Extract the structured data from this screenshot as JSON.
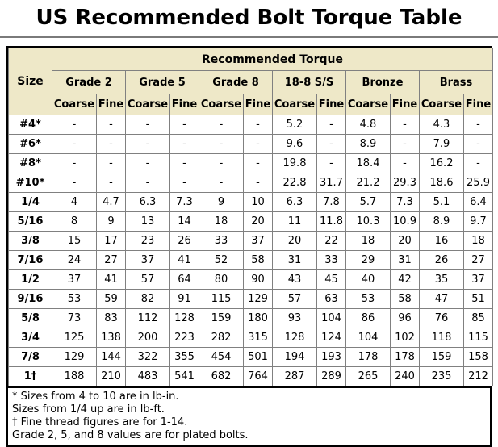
{
  "title": "US Recommended Bolt Torque Table",
  "colors": {
    "header_bg": "#EEE8C8",
    "grid_line": "#808080",
    "outer_border": "#000000",
    "page_bg": "#FFFFFF",
    "text_color": "#000000"
  },
  "chart_data": {
    "type": "table",
    "title": "US Recommended Bolt Torque Table",
    "torque_header": "Recommended Torque",
    "size_header": "Size",
    "groups": [
      "Grade 2",
      "Grade 5",
      "Grade 8",
      "18-8 S/S",
      "Bronze",
      "Brass"
    ],
    "thread_types": [
      "Coarse",
      "Fine"
    ],
    "rows": [
      {
        "size": "#4*",
        "values": [
          "-",
          "-",
          "-",
          "-",
          "-",
          "-",
          "5.2",
          "-",
          "4.8",
          "-",
          "4.3",
          "-"
        ]
      },
      {
        "size": "#6*",
        "values": [
          "-",
          "-",
          "-",
          "-",
          "-",
          "-",
          "9.6",
          "-",
          "8.9",
          "-",
          "7.9",
          "-"
        ]
      },
      {
        "size": "#8*",
        "values": [
          "-",
          "-",
          "-",
          "-",
          "-",
          "-",
          "19.8",
          "-",
          "18.4",
          "-",
          "16.2",
          "-"
        ]
      },
      {
        "size": "#10*",
        "values": [
          "-",
          "-",
          "-",
          "-",
          "-",
          "-",
          "22.8",
          "31.7",
          "21.2",
          "29.3",
          "18.6",
          "25.9"
        ]
      },
      {
        "size": "1/4",
        "values": [
          "4",
          "4.7",
          "6.3",
          "7.3",
          "9",
          "10",
          "6.3",
          "7.8",
          "5.7",
          "7.3",
          "5.1",
          "6.4"
        ]
      },
      {
        "size": "5/16",
        "values": [
          "8",
          "9",
          "13",
          "14",
          "18",
          "20",
          "11",
          "11.8",
          "10.3",
          "10.9",
          "8.9",
          "9.7"
        ]
      },
      {
        "size": "3/8",
        "values": [
          "15",
          "17",
          "23",
          "26",
          "33",
          "37",
          "20",
          "22",
          "18",
          "20",
          "16",
          "18"
        ]
      },
      {
        "size": "7/16",
        "values": [
          "24",
          "27",
          "37",
          "41",
          "52",
          "58",
          "31",
          "33",
          "29",
          "31",
          "26",
          "27"
        ]
      },
      {
        "size": "1/2",
        "values": [
          "37",
          "41",
          "57",
          "64",
          "80",
          "90",
          "43",
          "45",
          "40",
          "42",
          "35",
          "37"
        ]
      },
      {
        "size": "9/16",
        "values": [
          "53",
          "59",
          "82",
          "91",
          "115",
          "129",
          "57",
          "63",
          "53",
          "58",
          "47",
          "51"
        ]
      },
      {
        "size": "5/8",
        "values": [
          "73",
          "83",
          "112",
          "128",
          "159",
          "180",
          "93",
          "104",
          "86",
          "96",
          "76",
          "85"
        ]
      },
      {
        "size": "3/4",
        "values": [
          "125",
          "138",
          "200",
          "223",
          "282",
          "315",
          "128",
          "124",
          "104",
          "102",
          "118",
          "115"
        ]
      },
      {
        "size": "7/8",
        "values": [
          "129",
          "144",
          "322",
          "355",
          "454",
          "501",
          "194",
          "193",
          "178",
          "178",
          "159",
          "158"
        ]
      },
      {
        "size": "1†",
        "values": [
          "188",
          "210",
          "483",
          "541",
          "682",
          "764",
          "287",
          "289",
          "265",
          "240",
          "235",
          "212"
        ]
      }
    ],
    "notes": [
      "* Sizes from 4 to 10 are in lb-in.",
      "Sizes from 1/4 up are in lb-ft.",
      "† Fine thread figures are for 1-14.",
      "Grade 2, 5, and 8 values are for plated bolts."
    ]
  }
}
